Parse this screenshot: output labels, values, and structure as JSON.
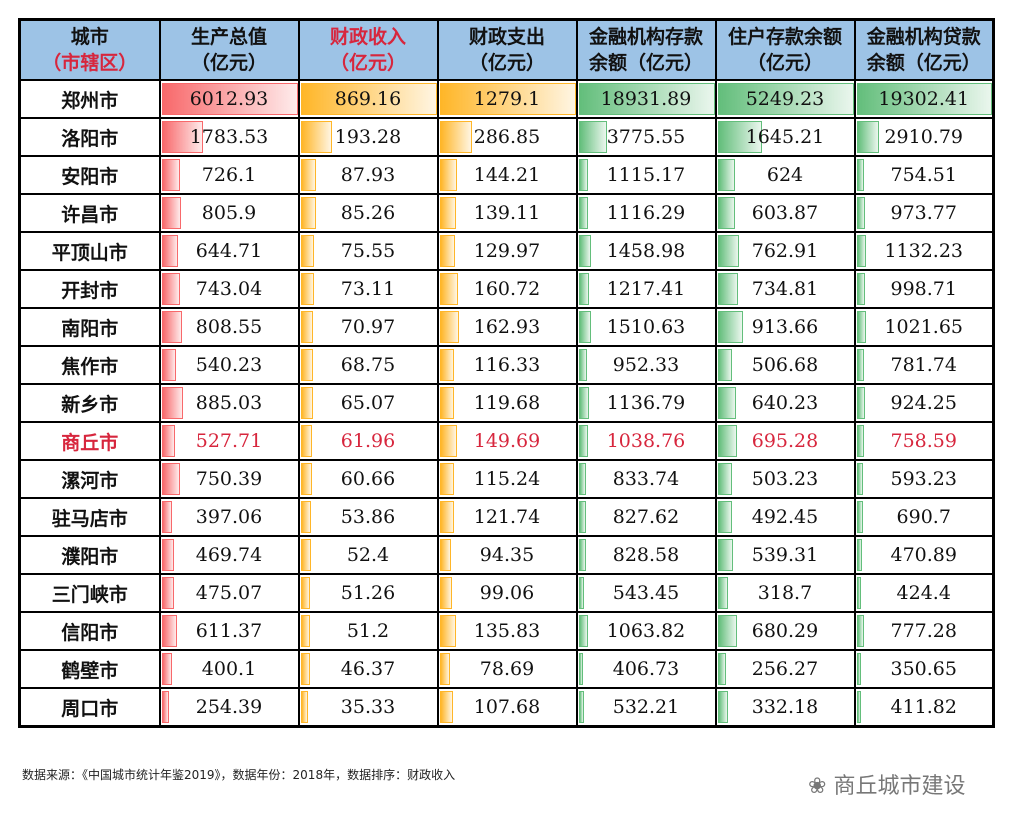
{
  "header": {
    "city": "城市",
    "city_sub": "（市辖区）",
    "cols": [
      [
        "生产总值",
        "（亿元）"
      ],
      [
        "财政收入",
        "（亿元）"
      ],
      [
        "财政支出",
        "（亿元）"
      ],
      [
        "金融机构存款",
        "余额（亿元）"
      ],
      [
        "住户存款余额",
        "（亿元）"
      ],
      [
        "金融机构贷款",
        "余额（亿元）"
      ]
    ]
  },
  "bar_colors": [
    "#f8696b",
    "#ffb628",
    "#ffb628",
    "#63be7b",
    "#63be7b",
    "#63be7b"
  ],
  "highlight_city": "商丘市",
  "rows": [
    [
      "郑州市",
      "6012.93",
      "869.16",
      "1279.1",
      "18931.89",
      "5249.23",
      "19302.41"
    ],
    [
      "洛阳市",
      "1783.53",
      "193.28",
      "286.85",
      "3775.55",
      "1645.21",
      "2910.79"
    ],
    [
      "安阳市",
      "726.1",
      "87.93",
      "144.21",
      "1115.17",
      "624",
      "754.51"
    ],
    [
      "许昌市",
      "805.9",
      "85.26",
      "139.11",
      "1116.29",
      "603.87",
      "973.77"
    ],
    [
      "平顶山市",
      "644.71",
      "75.55",
      "129.97",
      "1458.98",
      "762.91",
      "1132.23"
    ],
    [
      "开封市",
      "743.04",
      "73.11",
      "160.72",
      "1217.41",
      "734.81",
      "998.71"
    ],
    [
      "南阳市",
      "808.55",
      "70.97",
      "162.93",
      "1510.63",
      "913.66",
      "1021.65"
    ],
    [
      "焦作市",
      "540.23",
      "68.75",
      "116.33",
      "952.33",
      "506.68",
      "781.74"
    ],
    [
      "新乡市",
      "885.03",
      "65.07",
      "119.68",
      "1136.79",
      "640.23",
      "924.25"
    ],
    [
      "商丘市",
      "527.71",
      "61.96",
      "149.69",
      "1038.76",
      "695.28",
      "758.59"
    ],
    [
      "漯河市",
      "750.39",
      "60.66",
      "115.24",
      "833.74",
      "503.23",
      "593.23"
    ],
    [
      "驻马店市",
      "397.06",
      "53.86",
      "121.74",
      "827.62",
      "492.45",
      "690.7"
    ],
    [
      "濮阳市",
      "469.74",
      "52.4",
      "94.35",
      "828.58",
      "539.31",
      "470.89"
    ],
    [
      "三门峡市",
      "475.07",
      "51.26",
      "99.06",
      "543.45",
      "318.7",
      "424.4"
    ],
    [
      "信阳市",
      "611.37",
      "51.2",
      "135.83",
      "1063.82",
      "680.29",
      "777.28"
    ],
    [
      "鹤壁市",
      "400.1",
      "46.37",
      "78.69",
      "406.73",
      "256.27",
      "350.65"
    ],
    [
      "周口市",
      "254.39",
      "35.33",
      "107.68",
      "532.21",
      "332.18",
      "411.82"
    ]
  ],
  "footer": "数据来源：《中国城市统计年鉴2019》，数据年份：2018年，数据排序：财政收入",
  "brand": "商丘城市建设"
}
